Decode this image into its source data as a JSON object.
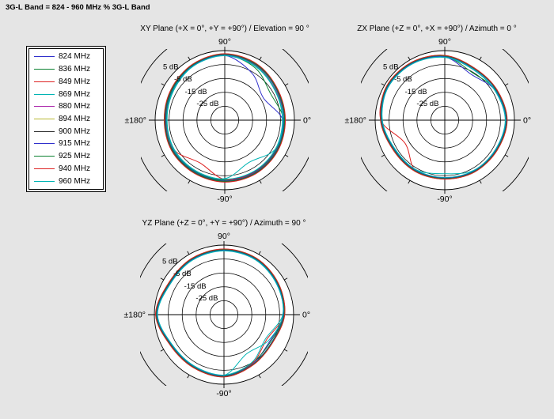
{
  "figure": {
    "title": "3G-L Band = 824 - 960 MHz % 3G-L Band",
    "background_color": "#e5e5e5",
    "grid_color": "#000000"
  },
  "legend": {
    "items": [
      {
        "label": "824 MHz",
        "color": "#3030cc"
      },
      {
        "label": "836 MHz",
        "color": "#0a8030"
      },
      {
        "label": "849 MHz",
        "color": "#dd2222"
      },
      {
        "label": "869 MHz",
        "color": "#00b4b4"
      },
      {
        "label": "880 MHz",
        "color": "#aa22aa"
      },
      {
        "label": "894 MHz",
        "color": "#b8b832"
      },
      {
        "label": "900 MHz",
        "color": "#303030"
      },
      {
        "label": "915 MHz",
        "color": "#3030cc"
      },
      {
        "label": "925 MHz",
        "color": "#0a8030"
      },
      {
        "label": "940 MHz",
        "color": "#dd2222"
      },
      {
        "label": "960 MHz",
        "color": "#00b4b4"
      }
    ]
  },
  "radial_axis": {
    "tick_labels": [
      "5 dB",
      "-5 dB",
      "-15 dB",
      "-25 dB"
    ],
    "tick_values_db": [
      5,
      -5,
      -15,
      -25
    ],
    "range_db": [
      -45,
      5
    ]
  },
  "angle_labels": {
    "top": "90°",
    "right": "0°",
    "bottom": "-90°",
    "left": "±180°"
  },
  "chart_data": [
    {
      "type": "line",
      "projection": "polar",
      "title": "XY Plane (+X = 0°, +Y = +90°) / Elevation = 90 °",
      "units": "dB",
      "r_axis_ticks_db": [
        5,
        -5,
        -15,
        -25
      ],
      "r_range_db": [
        -45,
        5
      ],
      "angles_deg": [
        0,
        30,
        60,
        90,
        120,
        150,
        180,
        210,
        240,
        270,
        300,
        330
      ],
      "series": [
        {
          "name": "824 MHz",
          "color": "#3030cc",
          "db": [
            -3.4,
            -13.0,
            -6.0,
            1.5,
            0.1,
            -2.1,
            -3.2,
            -2.5,
            -2.8,
            -2.1,
            -2.4,
            -2.9
          ]
        },
        {
          "name": "836 MHz",
          "color": "#0a8030",
          "db": [
            -2.7,
            -7.0,
            -1.5,
            1.8,
            0.4,
            -1.7,
            -2.9,
            -2.2,
            -2.4,
            -1.9,
            -2.0,
            -2.4
          ]
        },
        {
          "name": "849 MHz",
          "color": "#dd2222",
          "db": [
            -2.3,
            -2.6,
            0.2,
            1.9,
            0.6,
            -1.3,
            -2.6,
            -2.8,
            -9.5,
            -2.5,
            -1.8,
            -2.1
          ]
        },
        {
          "name": "869 MHz",
          "color": "#00b4b4",
          "db": [
            -3.1,
            -2.9,
            -0.2,
            1.6,
            0.2,
            -2.2,
            -3.3,
            -2.7,
            -2.9,
            -3.0,
            -10.0,
            -3.2
          ]
        },
        {
          "name": "880 MHz",
          "color": "#aa22aa",
          "db": [
            -2.2,
            -1.7,
            0.8,
            2.2,
            0.8,
            -1.2,
            -2.2,
            -1.7,
            -1.7,
            -1.2,
            -1.2,
            -1.7
          ]
        },
        {
          "name": "894 MHz",
          "color": "#b8b832",
          "db": [
            -2.0,
            -1.5,
            0.9,
            2.3,
            0.9,
            -1.0,
            -2.1,
            -1.5,
            -1.6,
            -1.0,
            -1.1,
            -1.5
          ]
        },
        {
          "name": "900 MHz",
          "color": "#303030",
          "db": [
            -1.7,
            -1.2,
            1.3,
            2.6,
            1.2,
            -0.7,
            -1.8,
            -1.2,
            -1.3,
            -0.7,
            -0.8,
            -1.2
          ]
        },
        {
          "name": "915 MHz",
          "color": "#3030cc",
          "db": [
            -2.4,
            -2.0,
            0.6,
            2.1,
            0.6,
            -1.4,
            -2.5,
            -1.9,
            -2.0,
            -1.4,
            -1.5,
            -2.0
          ]
        },
        {
          "name": "925 MHz",
          "color": "#0a8030",
          "db": [
            -2.1,
            -1.6,
            0.9,
            2.4,
            0.9,
            -1.1,
            -2.1,
            -1.6,
            -1.6,
            -1.1,
            -1.1,
            -1.6
          ]
        },
        {
          "name": "940 MHz",
          "color": "#dd2222",
          "db": [
            -1.5,
            -1.0,
            1.5,
            2.8,
            1.4,
            -0.5,
            -1.5,
            -1.0,
            -1.0,
            -0.5,
            -0.5,
            -1.0
          ]
        },
        {
          "name": "960 MHz",
          "color": "#00b4b4",
          "db": [
            -3.6,
            -3.2,
            -0.6,
            1.3,
            -0.1,
            -2.6,
            -3.6,
            -3.1,
            -3.1,
            -2.6,
            -2.7,
            -3.1
          ]
        }
      ]
    },
    {
      "type": "line",
      "projection": "polar",
      "title": "ZX Plane (+Z = 0°, +X = +90°) / Azimuth = 0 °",
      "units": "dB",
      "r_axis_ticks_db": [
        5,
        -5,
        -15,
        -25
      ],
      "r_range_db": [
        -45,
        5
      ],
      "angles_deg": [
        0,
        30,
        60,
        90,
        120,
        150,
        180,
        210,
        240,
        270,
        300,
        330
      ],
      "series": [
        {
          "name": "824 MHz",
          "color": "#3030cc",
          "db": [
            -1.2,
            -2.8,
            -7.0,
            0.4,
            2.0,
            2.4,
            0.2,
            -3.2,
            -3.4,
            -3.6,
            -3.0,
            -2.6
          ]
        },
        {
          "name": "836 MHz",
          "color": "#0a8030",
          "db": [
            -1.0,
            -2.5,
            -5.5,
            0.7,
            2.2,
            2.6,
            0.4,
            -3.0,
            -3.2,
            -3.3,
            -2.8,
            -2.4
          ]
        },
        {
          "name": "849 MHz",
          "color": "#dd2222",
          "db": [
            -0.6,
            -2.0,
            -2.3,
            1.2,
            2.6,
            3.0,
            0.8,
            -12.0,
            -3.1,
            -3.0,
            -2.4,
            -2.0
          ]
        },
        {
          "name": "869 MHz",
          "color": "#00b4b4",
          "db": [
            -1.4,
            -3.0,
            -3.2,
            0.3,
            1.8,
            2.2,
            0.0,
            -3.5,
            -3.7,
            -3.8,
            -3.2,
            -2.8
          ]
        },
        {
          "name": "880 MHz",
          "color": "#aa22aa",
          "db": [
            -0.7,
            -2.1,
            -2.4,
            1.1,
            2.5,
            2.9,
            0.7,
            -2.7,
            -2.9,
            -3.1,
            -2.5,
            -2.1
          ]
        },
        {
          "name": "894 MHz",
          "color": "#b8b832",
          "db": [
            -0.5,
            -1.9,
            -2.2,
            1.3,
            2.7,
            3.1,
            0.9,
            -2.5,
            -2.7,
            -2.9,
            -2.3,
            -1.9
          ]
        },
        {
          "name": "900 MHz",
          "color": "#303030",
          "db": [
            -0.3,
            -1.7,
            -2.0,
            1.5,
            2.9,
            3.3,
            1.1,
            -2.3,
            -2.5,
            -2.7,
            -2.1,
            -1.7
          ]
        },
        {
          "name": "915 MHz",
          "color": "#3030cc",
          "db": [
            -0.9,
            -2.3,
            -2.6,
            0.9,
            2.3,
            2.7,
            0.5,
            -2.9,
            -3.1,
            -3.3,
            -2.7,
            -2.3
          ]
        },
        {
          "name": "925 MHz",
          "color": "#0a8030",
          "db": [
            -0.6,
            -2.0,
            -2.3,
            1.2,
            2.6,
            3.0,
            0.8,
            -2.6,
            -2.8,
            -3.0,
            -2.4,
            -2.0
          ]
        },
        {
          "name": "940 MHz",
          "color": "#dd2222",
          "db": [
            -0.2,
            -1.6,
            -1.9,
            1.6,
            3.0,
            3.4,
            1.2,
            -2.2,
            -2.4,
            -2.6,
            -2.0,
            -1.6
          ]
        },
        {
          "name": "960 MHz",
          "color": "#00b4b4",
          "db": [
            -1.6,
            -3.2,
            -3.4,
            0.1,
            1.6,
            2.0,
            -0.2,
            -3.7,
            -3.9,
            -6.5,
            -3.4,
            -3.0
          ]
        }
      ]
    },
    {
      "type": "line",
      "projection": "polar",
      "title": "YZ Plane (+Z = 0°, +Y = +90°) / Azimuth = 90 °",
      "units": "dB",
      "r_axis_ticks_db": [
        5,
        -5,
        -15,
        -25
      ],
      "r_range_db": [
        -45,
        5
      ],
      "angles_deg": [
        0,
        30,
        60,
        90,
        120,
        150,
        180,
        210,
        240,
        270,
        300,
        330
      ],
      "series": [
        {
          "name": "824 MHz",
          "color": "#3030cc",
          "db": [
            -2.4,
            -0.9,
            0.8,
            1.2,
            0.6,
            -0.2,
            3.1,
            -1.6,
            -2.0,
            -1.2,
            -4.4,
            -7.0
          ]
        },
        {
          "name": "836 MHz",
          "color": "#0a8030",
          "db": [
            -2.2,
            -0.7,
            1.0,
            1.4,
            0.8,
            0.0,
            3.3,
            -1.4,
            -1.8,
            -1.0,
            -4.8,
            -6.3
          ]
        },
        {
          "name": "849 MHz",
          "color": "#dd2222",
          "db": [
            -1.8,
            -0.3,
            1.4,
            1.8,
            1.2,
            0.4,
            3.7,
            -1.0,
            -1.4,
            -0.6,
            -4.5,
            -9.5
          ]
        },
        {
          "name": "869 MHz",
          "color": "#00b4b4",
          "db": [
            -2.6,
            -1.1,
            0.6,
            1.0,
            0.4,
            -0.4,
            2.9,
            -1.8,
            -2.2,
            -1.4,
            -12.5,
            -8.0
          ]
        },
        {
          "name": "880 MHz",
          "color": "#aa22aa",
          "db": [
            -1.9,
            -0.4,
            1.3,
            1.7,
            1.1,
            0.3,
            3.6,
            -1.1,
            -1.5,
            -0.7,
            -3.7,
            -5.2
          ]
        },
        {
          "name": "894 MHz",
          "color": "#b8b832",
          "db": [
            -1.7,
            -0.2,
            1.5,
            1.9,
            1.3,
            0.5,
            3.8,
            -0.9,
            -1.3,
            -0.5,
            -3.5,
            -5.0
          ]
        },
        {
          "name": "900 MHz",
          "color": "#303030",
          "db": [
            -1.5,
            0.0,
            1.7,
            2.1,
            1.5,
            0.7,
            4.0,
            -0.7,
            -1.1,
            -0.3,
            -3.3,
            -4.8
          ]
        },
        {
          "name": "915 MHz",
          "color": "#3030cc",
          "db": [
            -2.1,
            -0.6,
            1.1,
            1.5,
            0.9,
            0.1,
            3.4,
            -1.3,
            -1.7,
            -0.9,
            -3.9,
            -5.4
          ]
        },
        {
          "name": "925 MHz",
          "color": "#0a8030",
          "db": [
            -1.8,
            -0.3,
            1.4,
            1.8,
            1.2,
            0.4,
            3.7,
            -1.0,
            -1.4,
            -0.6,
            -3.6,
            -5.1
          ]
        },
        {
          "name": "940 MHz",
          "color": "#dd2222",
          "db": [
            -1.4,
            0.1,
            1.8,
            2.2,
            1.6,
            0.8,
            4.1,
            -0.6,
            -1.0,
            -0.2,
            -3.2,
            -4.7
          ]
        },
        {
          "name": "960 MHz",
          "color": "#00b4b4",
          "db": [
            -2.8,
            -1.3,
            0.4,
            0.8,
            0.2,
            -0.6,
            2.7,
            -2.0,
            -2.4,
            -1.6,
            -5.2,
            -10.5
          ]
        }
      ]
    }
  ]
}
